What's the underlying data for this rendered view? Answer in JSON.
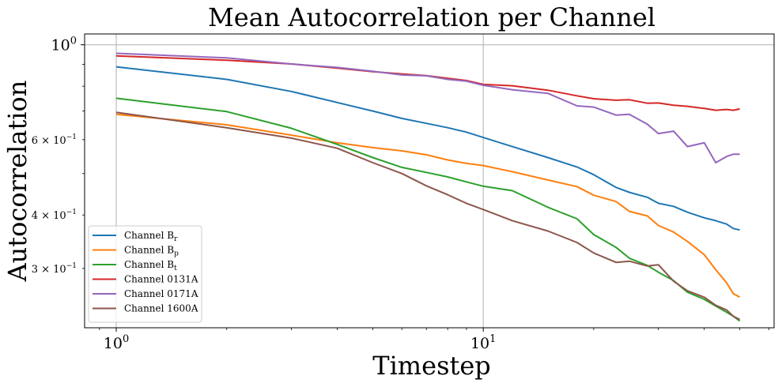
{
  "chart_data": {
    "type": "line",
    "title": "Mean Autocorrelation per Channel",
    "xlabel": "Timestep",
    "ylabel": "Autocorrelation",
    "xscale": "log",
    "yscale": "log",
    "xlim": [
      0.82,
      62
    ],
    "ylim": [
      0.218,
      1.06
    ],
    "grid": true,
    "legend_position": "lower-left",
    "x_major_ticks": [
      {
        "value": 1,
        "base": "10",
        "exp": "0"
      },
      {
        "value": 10,
        "base": "10",
        "exp": "1"
      }
    ],
    "y_major_ticks": [
      {
        "value": 1.0,
        "base": "10",
        "exp": "0",
        "mant": ""
      }
    ],
    "y_labeled_minor_ticks": [
      {
        "value": 0.6,
        "mant": "6 × ",
        "base": "10",
        "exp": "−1"
      },
      {
        "value": 0.4,
        "mant": "4 × ",
        "base": "10",
        "exp": "−1"
      },
      {
        "value": 0.3,
        "mant": "3 × ",
        "base": "10",
        "exp": "−1"
      }
    ],
    "y_unlabeled_minor_ticks": [
      0.5,
      0.7,
      0.8,
      0.9
    ],
    "series": [
      {
        "name": "Channel B_r",
        "label_main": "Channel B",
        "label_sub": "r",
        "label_script": "sub",
        "color": "#1f77b4",
        "points": [
          [
            1,
            0.888
          ],
          [
            2,
            0.83
          ],
          [
            3,
            0.778
          ],
          [
            4,
            0.733
          ],
          [
            5,
            0.7
          ],
          [
            6,
            0.673
          ],
          [
            7,
            0.655
          ],
          [
            8,
            0.64
          ],
          [
            9,
            0.625
          ],
          [
            10,
            0.607
          ],
          [
            12,
            0.578
          ],
          [
            15,
            0.545
          ],
          [
            18,
            0.518
          ],
          [
            20,
            0.497
          ],
          [
            23,
            0.464
          ],
          [
            25,
            0.452
          ],
          [
            28,
            0.44
          ],
          [
            30,
            0.426
          ],
          [
            33,
            0.419
          ],
          [
            36,
            0.406
          ],
          [
            40,
            0.394
          ],
          [
            43,
            0.388
          ],
          [
            46,
            0.381
          ],
          [
            48,
            0.372
          ],
          [
            50,
            0.369
          ]
        ]
      },
      {
        "name": "Channel B_p",
        "label_main": "Channel B",
        "label_sub": "p",
        "label_script": "sub",
        "color": "#ff7f0e",
        "points": [
          [
            1,
            0.688
          ],
          [
            2,
            0.65
          ],
          [
            3,
            0.615
          ],
          [
            4,
            0.59
          ],
          [
            5,
            0.575
          ],
          [
            6,
            0.565
          ],
          [
            7,
            0.553
          ],
          [
            8,
            0.538
          ],
          [
            9,
            0.528
          ],
          [
            10,
            0.522
          ],
          [
            12,
            0.505
          ],
          [
            15,
            0.483
          ],
          [
            18,
            0.466
          ],
          [
            20,
            0.445
          ],
          [
            23,
            0.43
          ],
          [
            25,
            0.408
          ],
          [
            28,
            0.398
          ],
          [
            30,
            0.378
          ],
          [
            33,
            0.365
          ],
          [
            36,
            0.347
          ],
          [
            40,
            0.323
          ],
          [
            43,
            0.298
          ],
          [
            46,
            0.278
          ],
          [
            48,
            0.262
          ],
          [
            50,
            0.257
          ]
        ]
      },
      {
        "name": "Channel B_t",
        "label_main": "Channel B",
        "label_sub": "t",
        "label_script": "sub",
        "color": "#2ca02c",
        "points": [
          [
            1,
            0.75
          ],
          [
            2,
            0.698
          ],
          [
            3,
            0.638
          ],
          [
            4,
            0.585
          ],
          [
            5,
            0.545
          ],
          [
            6,
            0.517
          ],
          [
            7,
            0.503
          ],
          [
            8,
            0.491
          ],
          [
            9,
            0.478
          ],
          [
            10,
            0.467
          ],
          [
            12,
            0.456
          ],
          [
            15,
            0.417
          ],
          [
            18,
            0.392
          ],
          [
            20,
            0.36
          ],
          [
            23,
            0.336
          ],
          [
            25,
            0.317
          ],
          [
            28,
            0.305
          ],
          [
            30,
            0.294
          ],
          [
            33,
            0.281
          ],
          [
            36,
            0.264
          ],
          [
            40,
            0.254
          ],
          [
            43,
            0.245
          ],
          [
            46,
            0.237
          ],
          [
            48,
            0.232
          ],
          [
            50,
            0.226
          ]
        ]
      },
      {
        "name": "Channel 0131A",
        "label_main": "Channel 0131A",
        "label_sub": "",
        "label_script": "",
        "color": "#d62728",
        "points": [
          [
            1,
            0.942
          ],
          [
            2,
            0.92
          ],
          [
            3,
            0.902
          ],
          [
            4,
            0.882
          ],
          [
            5,
            0.865
          ],
          [
            6,
            0.855
          ],
          [
            7,
            0.847
          ],
          [
            8,
            0.835
          ],
          [
            9,
            0.825
          ],
          [
            10,
            0.808
          ],
          [
            12,
            0.802
          ],
          [
            15,
            0.783
          ],
          [
            18,
            0.76
          ],
          [
            20,
            0.748
          ],
          [
            23,
            0.742
          ],
          [
            25,
            0.744
          ],
          [
            28,
            0.73
          ],
          [
            30,
            0.731
          ],
          [
            33,
            0.722
          ],
          [
            36,
            0.718
          ],
          [
            40,
            0.71
          ],
          [
            43,
            0.703
          ],
          [
            46,
            0.706
          ],
          [
            48,
            0.703
          ],
          [
            50,
            0.708
          ]
        ]
      },
      {
        "name": "Channel 0171A",
        "label_main": "Channel 0171A",
        "label_sub": "",
        "label_script": "",
        "color": "#9467bd",
        "points": [
          [
            1,
            0.955
          ],
          [
            2,
            0.932
          ],
          [
            3,
            0.902
          ],
          [
            4,
            0.885
          ],
          [
            5,
            0.867
          ],
          [
            6,
            0.85
          ],
          [
            7,
            0.846
          ],
          [
            8,
            0.83
          ],
          [
            9,
            0.822
          ],
          [
            10,
            0.804
          ],
          [
            12,
            0.785
          ],
          [
            15,
            0.77
          ],
          [
            18,
            0.72
          ],
          [
            20,
            0.715
          ],
          [
            23,
            0.685
          ],
          [
            25,
            0.688
          ],
          [
            28,
            0.652
          ],
          [
            30,
            0.62
          ],
          [
            33,
            0.628
          ],
          [
            36,
            0.578
          ],
          [
            40,
            0.59
          ],
          [
            43,
            0.53
          ],
          [
            46,
            0.548
          ],
          [
            48,
            0.555
          ],
          [
            50,
            0.555
          ]
        ]
      },
      {
        "name": "Channel 1600A",
        "label_main": "Channel 1600A",
        "label_sub": "",
        "label_script": "",
        "color": "#8c564b",
        "points": [
          [
            1,
            0.695
          ],
          [
            2,
            0.64
          ],
          [
            3,
            0.605
          ],
          [
            4,
            0.573
          ],
          [
            5,
            0.53
          ],
          [
            6,
            0.5
          ],
          [
            7,
            0.468
          ],
          [
            8,
            0.446
          ],
          [
            9,
            0.426
          ],
          [
            10,
            0.412
          ],
          [
            12,
            0.388
          ],
          [
            15,
            0.367
          ],
          [
            18,
            0.345
          ],
          [
            20,
            0.326
          ],
          [
            23,
            0.31
          ],
          [
            25,
            0.312
          ],
          [
            28,
            0.304
          ],
          [
            30,
            0.306
          ],
          [
            33,
            0.28
          ],
          [
            36,
            0.266
          ],
          [
            40,
            0.257
          ],
          [
            43,
            0.246
          ],
          [
            46,
            0.24
          ],
          [
            48,
            0.232
          ],
          [
            50,
            0.228
          ]
        ]
      }
    ]
  }
}
